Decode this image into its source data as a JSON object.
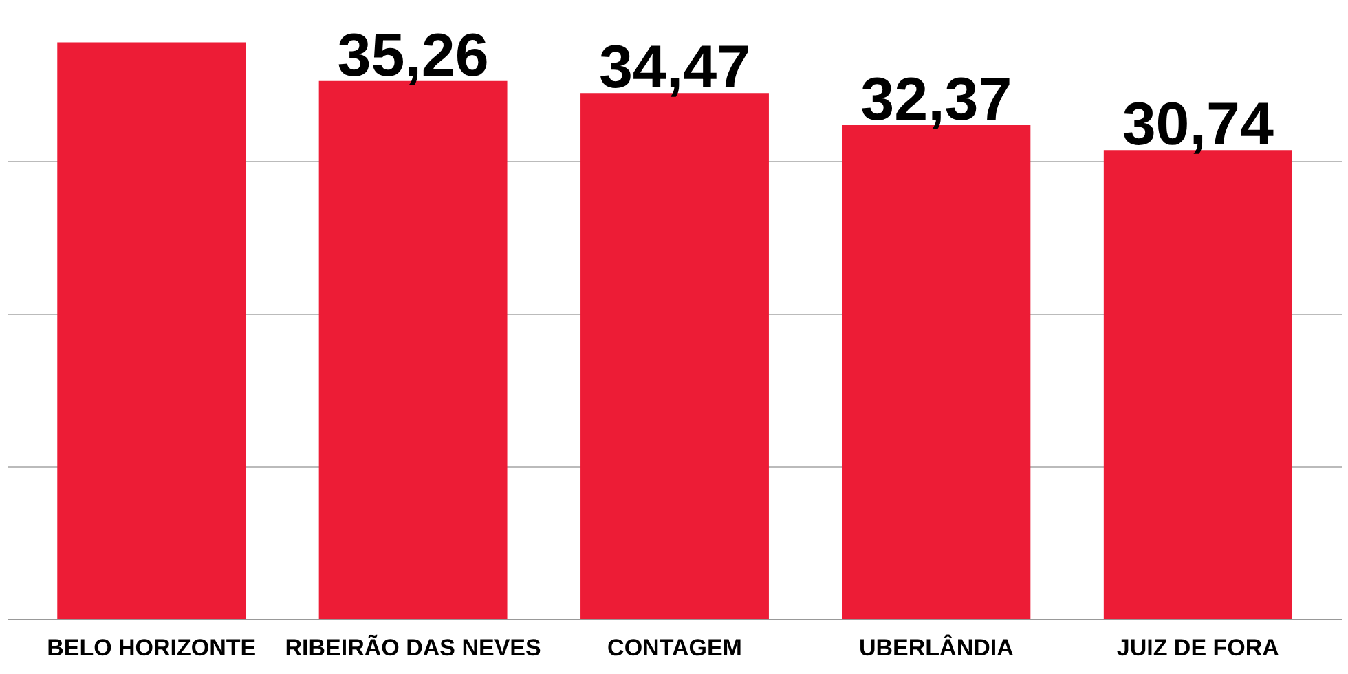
{
  "chart_data": {
    "type": "bar",
    "categories": [
      "BELO HORIZONTE",
      "RIBEIRÃO DAS NEVES",
      "CONTAGEM",
      "UBERLÂNDIA",
      "JUIZ DE FORA"
    ],
    "values": [
      37.8,
      35.26,
      34.47,
      32.37,
      30.74
    ],
    "value_labels": [
      null,
      "35,26",
      "34,47",
      "32,37",
      "30,74"
    ],
    "color": "#ed1c36",
    "yticks": [
      {
        "value": 10,
        "label": null
      },
      {
        "value": 20,
        "label": null
      },
      {
        "value": 30,
        "label": null
      }
    ],
    "tick_labels": "x",
    "grid": "y"
  }
}
